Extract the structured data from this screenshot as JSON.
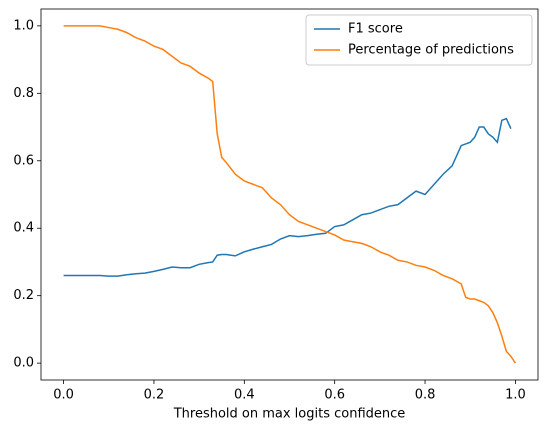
{
  "chart_data": {
    "type": "line",
    "xlabel": "Threshold on max logits  confidence",
    "x": [
      0,
      0.02,
      0.04,
      0.06,
      0.08,
      0.1,
      0.12,
      0.14,
      0.16,
      0.18,
      0.2,
      0.22,
      0.24,
      0.26,
      0.28,
      0.3,
      0.32,
      0.33,
      0.34,
      0.35,
      0.36,
      0.38,
      0.4,
      0.42,
      0.44,
      0.46,
      0.48,
      0.5,
      0.52,
      0.54,
      0.56,
      0.58,
      0.6,
      0.62,
      0.64,
      0.66,
      0.68,
      0.7,
      0.72,
      0.74,
      0.76,
      0.78,
      0.8,
      0.82,
      0.84,
      0.86,
      0.88,
      0.89,
      0.9,
      0.91,
      0.92,
      0.93,
      0.94,
      0.95,
      0.96,
      0.97,
      0.98,
      0.99,
      1.0
    ],
    "series": [
      {
        "name": "F1 score",
        "color": "#1f77b4",
        "values": [
          0.26,
          0.26,
          0.26,
          0.26,
          0.26,
          0.258,
          0.258,
          0.262,
          0.265,
          0.267,
          0.272,
          0.278,
          0.285,
          0.283,
          0.283,
          0.293,
          0.298,
          0.3,
          0.32,
          0.322,
          0.322,
          0.318,
          0.33,
          0.338,
          0.345,
          0.352,
          0.368,
          0.378,
          0.375,
          0.378,
          0.382,
          0.385,
          0.405,
          0.41,
          0.425,
          0.44,
          0.445,
          0.455,
          0.465,
          0.47,
          0.49,
          0.51,
          0.5,
          0.53,
          0.56,
          0.585,
          0.645,
          0.65,
          0.655,
          0.67,
          0.7,
          0.7,
          0.68,
          0.67,
          0.655,
          0.72,
          0.725,
          0.695,
          null
        ]
      },
      {
        "name": "Percentage of predictions",
        "color": "#ff7f0e",
        "values": [
          1.0,
          1.0,
          1.0,
          1.0,
          1.0,
          0.995,
          0.99,
          0.98,
          0.965,
          0.955,
          0.94,
          0.93,
          0.91,
          0.89,
          0.88,
          0.86,
          0.845,
          0.835,
          0.68,
          0.61,
          0.595,
          0.56,
          0.54,
          0.53,
          0.52,
          0.49,
          0.47,
          0.44,
          0.42,
          0.41,
          0.4,
          0.39,
          0.38,
          0.365,
          0.36,
          0.355,
          0.345,
          0.33,
          0.32,
          0.305,
          0.3,
          0.29,
          0.285,
          0.275,
          0.26,
          0.25,
          0.235,
          0.195,
          0.19,
          0.19,
          0.185,
          0.18,
          0.17,
          0.15,
          0.12,
          0.08,
          0.035,
          0.02,
          0.0
        ]
      }
    ],
    "xlim": [
      -0.05,
      1.05
    ],
    "ylim": [
      -0.05,
      1.05
    ],
    "xticks": [
      {
        "value": 0,
        "label": "0.0"
      },
      0.2,
      0.4,
      0.6,
      0.8,
      {
        "value": 1,
        "label": "1.0"
      }
    ],
    "yticks": [
      {
        "value": 0,
        "label": "0.0"
      },
      0.2,
      0.4,
      0.6,
      0.8,
      {
        "value": 1,
        "label": "1.0"
      }
    ],
    "legend": "upper right"
  }
}
